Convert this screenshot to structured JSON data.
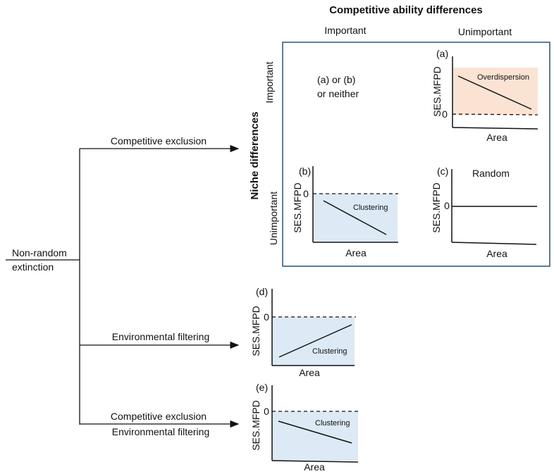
{
  "header": {
    "title": "Competitive ability differences",
    "col_important": "Important",
    "col_unimportant": "Unimportant"
  },
  "side": {
    "niche_title": "Niche differences",
    "row_important": "Important",
    "row_unimportant": "Unimportant"
  },
  "tree": {
    "root": [
      "Non-random",
      "extinction"
    ],
    "branch_competitive": "Competitive exclusion",
    "branch_environmental": "Environmental filtering",
    "branch_both_1": "Competitive exclusion",
    "branch_both_2": "Environmental filtering"
  },
  "cell_neither": [
    "(a) or (b)",
    "or neither"
  ],
  "panels": {
    "a": {
      "letter": "(a)",
      "ylabel": "SES.MFPD",
      "xlabel": "Area",
      "zero": "0",
      "region": "Overdispersion",
      "trend": "decreasing"
    },
    "b": {
      "letter": "(b)",
      "ylabel": "SES.MFPD",
      "xlabel": "Area",
      "zero": "0",
      "region": "Clustering",
      "trend": "decreasing"
    },
    "c": {
      "letter": "(c)",
      "ylabel": "SES.MFPD",
      "xlabel": "Area",
      "zero": "0",
      "note": "Random",
      "trend": "flat"
    },
    "d": {
      "letter": "(d)",
      "ylabel": "SES.MFPD",
      "xlabel": "Area",
      "zero": "0",
      "region": "Clustering",
      "trend": "increasing"
    },
    "e": {
      "letter": "(e)",
      "ylabel": "SES.MFPD",
      "xlabel": "Area",
      "zero": "0",
      "region": "Clustering",
      "trend": "decreasing"
    }
  },
  "colors": {
    "overdispersion_fill": "#fbe3d4",
    "clustering_fill": "#dde9f5",
    "frame": "#3b5b77",
    "line": "#111111"
  }
}
